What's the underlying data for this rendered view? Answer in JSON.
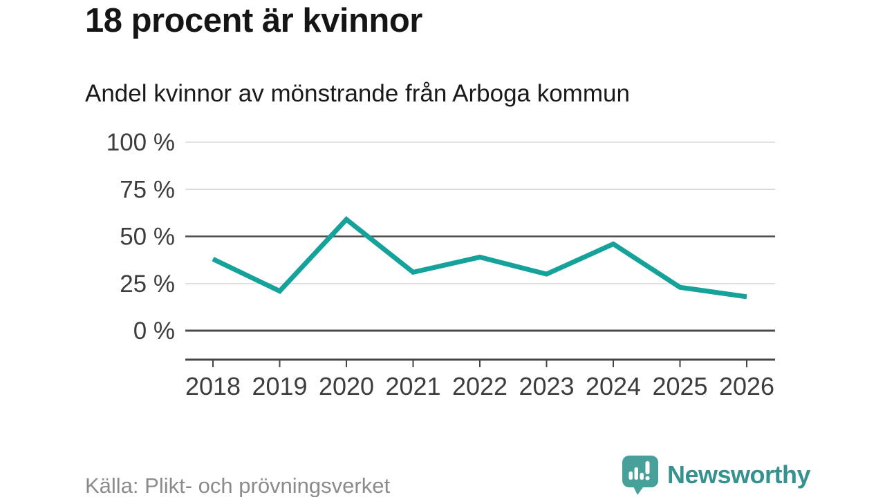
{
  "header": {
    "title": "18 procent är kvinnor",
    "subtitle": "Andel kvinnor av mönstrande från Arboga kommun"
  },
  "footer": {
    "source": "Källa: Plikt- och prövningsverket",
    "brand_name": "Newsworthy",
    "brand_icon": "speech-bubble-bar-chart-icon"
  },
  "colors": {
    "line": "#14a29a",
    "grid_light": "#d9d9d9",
    "grid_strong": "#4a4a4a",
    "axis": "#454545",
    "tick_label": "#3d3d3d",
    "title_text": "#151515",
    "source_text": "#8b8b8b",
    "brand_teal": "#47a09a",
    "brand_text": "#35928f",
    "background": "#ffffff"
  },
  "chart_data": {
    "type": "line",
    "title": "18 procent är kvinnor",
    "subtitle": "Andel kvinnor av mönstrande från Arboga kommun",
    "x": [
      2018,
      2019,
      2020,
      2021,
      2022,
      2023,
      2024,
      2025,
      2026
    ],
    "series": [
      {
        "name": "Andel kvinnor av mönstrande",
        "values": [
          38,
          21,
          59,
          31,
          39,
          30,
          46,
          23,
          18
        ]
      }
    ],
    "xlabel": "",
    "ylabel": "",
    "ylim": [
      0,
      100
    ],
    "yticks": [
      0,
      25,
      50,
      75,
      100
    ],
    "ytick_suffix": " %",
    "strong_gridlines": [
      0,
      50
    ],
    "grid": true,
    "legend": false,
    "unit": "percent"
  }
}
